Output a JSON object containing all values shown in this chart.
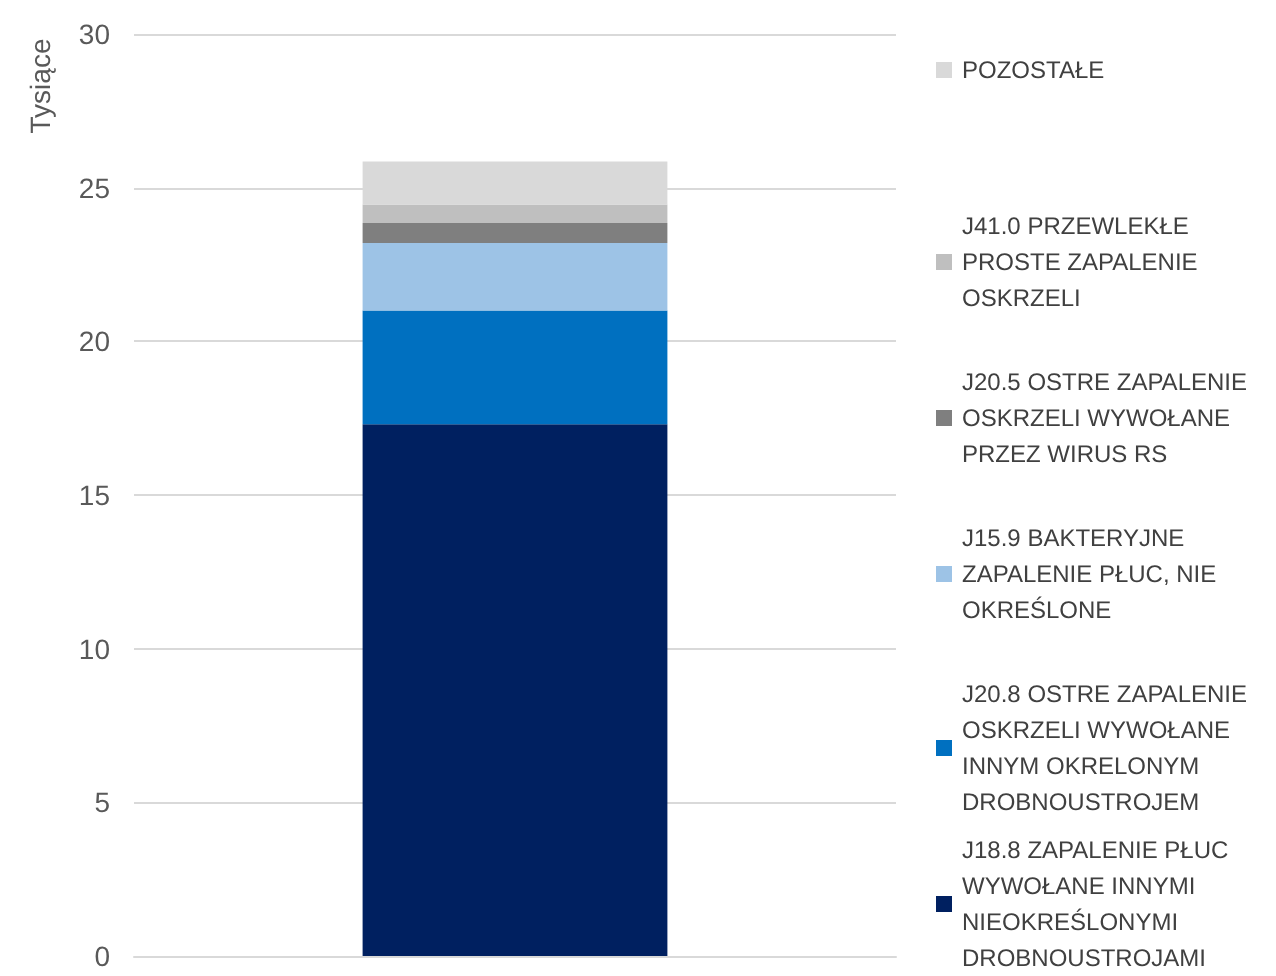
{
  "chart_data": {
    "type": "bar",
    "stacked": true,
    "ylabel": "Tysiące",
    "categories": [
      null
    ],
    "series": [
      {
        "name": "J18.8 ZAPALENIE PŁUC WYWOŁANE INNYMI NIEOKREŚLONYMI DROBNOUSTROJAMI",
        "color": "#002060",
        "values": [
          17.3
        ]
      },
      {
        "name": "J20.8 OSTRE ZAPALENIE OSKRZELI WYWOŁANE INNYM OKRELONYM DROBNOUSTROJEM",
        "color": "#0070c0",
        "values": [
          3.7
        ]
      },
      {
        "name": "J15.9 BAKTERYJNE ZAPALENIE PŁUC, NIE OKREŚLONE",
        "color": "#9dc3e6",
        "values": [
          2.2
        ]
      },
      {
        "name": "J20.5 OSTRE ZAPALENIE OSKRZELI WYWOŁANE PRZEZ WIRUS RS",
        "color": "#7f7f7f",
        "values": [
          0.65
        ]
      },
      {
        "name": "J41.0 PRZEWLEKŁE PROSTE ZAPALENIE OSKRZELI",
        "color": "#bfbfbf",
        "values": [
          0.6
        ]
      },
      {
        "name": "POZOSTAŁE",
        "color": "#d9d9d9",
        "values": [
          1.4
        ]
      }
    ],
    "ylim": [
      0,
      30
    ],
    "yticks": [
      0,
      5,
      10,
      15,
      20,
      25,
      30
    ],
    "grid": "y",
    "legend": "right"
  }
}
